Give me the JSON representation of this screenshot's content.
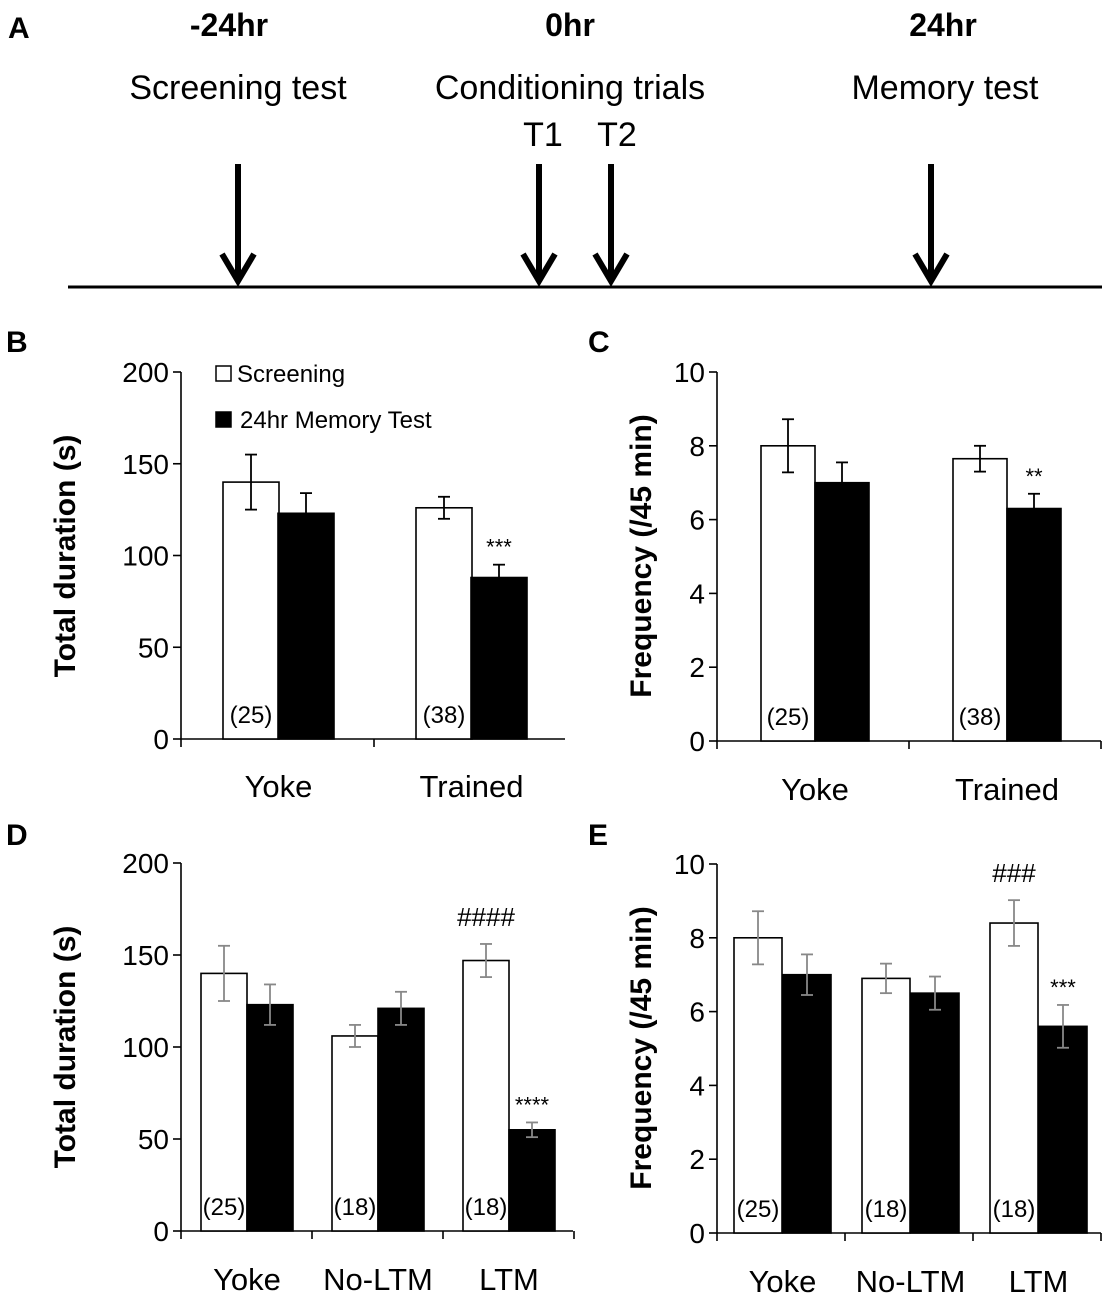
{
  "timeline": {
    "panel": "A",
    "events": [
      {
        "time": "-24hr",
        "label": "Screening test"
      },
      {
        "time": "0hr",
        "label": "Conditioning trials"
      },
      {
        "time": "24hr",
        "label": "Memory test"
      }
    ],
    "trials": [
      "T1",
      "T2"
    ]
  },
  "legend": {
    "screening": "Screening",
    "memory": "24hr Memory Test"
  },
  "colors": {
    "screening": "#ffffff",
    "memory": "#000000",
    "errorB": "#000000",
    "errorD": "#888888"
  },
  "chart_data": [
    {
      "panel": "B",
      "type": "bar",
      "ylabel": "Total duration (s)",
      "ylim": [
        0,
        200
      ],
      "yticks": [
        0,
        50,
        100,
        150,
        200
      ],
      "categories": [
        "Yoke",
        "Trained"
      ],
      "n": [
        "(25)",
        "(38)"
      ],
      "series": [
        {
          "name": "Screening",
          "values": [
            140,
            126
          ],
          "errors": [
            15,
            6
          ]
        },
        {
          "name": "24hr Memory Test",
          "values": [
            123,
            88
          ],
          "errors": [
            11,
            7
          ]
        }
      ],
      "annotations": [
        {
          "text": "***",
          "cat": 1,
          "series": 1
        }
      ]
    },
    {
      "panel": "C",
      "type": "bar",
      "ylabel": "Frequency (/45 min)",
      "ylim": [
        0,
        10
      ],
      "yticks": [
        0,
        2,
        4,
        6,
        8,
        10
      ],
      "categories": [
        "Yoke",
        "Trained"
      ],
      "n": [
        "(25)",
        "(38)"
      ],
      "series": [
        {
          "name": "Screening",
          "values": [
            8.0,
            7.65
          ],
          "errors": [
            0.72,
            0.35
          ]
        },
        {
          "name": "24hr Memory Test",
          "values": [
            7.0,
            6.3
          ],
          "errors": [
            0.55,
            0.4
          ]
        }
      ],
      "annotations": [
        {
          "text": "**",
          "cat": 1,
          "series": 1
        }
      ]
    },
    {
      "panel": "D",
      "type": "bar",
      "ylabel": "Total duration (s)",
      "ylim": [
        0,
        200
      ],
      "yticks": [
        0,
        50,
        100,
        150,
        200
      ],
      "categories": [
        "Yoke",
        "No-LTM",
        "LTM"
      ],
      "n": [
        "(25)",
        "(18)",
        "(18)"
      ],
      "series": [
        {
          "name": "Screening",
          "values": [
            140,
            106,
            147
          ],
          "errors": [
            15,
            6,
            9
          ]
        },
        {
          "name": "24hr Memory Test",
          "values": [
            123,
            121,
            55
          ],
          "errors": [
            11,
            9,
            4
          ]
        }
      ],
      "annotations": [
        {
          "text": "####",
          "cat": 2,
          "series": 0,
          "kind": "hash"
        },
        {
          "text": "****",
          "cat": 2,
          "series": 1
        }
      ]
    },
    {
      "panel": "E",
      "type": "bar",
      "ylabel": "Frequency (/45 min)",
      "ylim": [
        0,
        10
      ],
      "yticks": [
        0,
        2,
        4,
        6,
        8,
        10
      ],
      "categories": [
        "Yoke",
        "No-LTM",
        "LTM"
      ],
      "n": [
        "(25)",
        "(18)",
        "(18)"
      ],
      "series": [
        {
          "name": "Screening",
          "values": [
            8.0,
            6.9,
            8.4
          ],
          "errors": [
            0.72,
            0.4,
            0.62
          ]
        },
        {
          "name": "24hr Memory Test",
          "values": [
            7.0,
            6.5,
            5.6
          ],
          "errors": [
            0.55,
            0.45,
            0.58
          ]
        }
      ],
      "annotations": [
        {
          "text": "###",
          "cat": 2,
          "series": 0,
          "kind": "hash"
        },
        {
          "text": "***",
          "cat": 2,
          "series": 1
        }
      ]
    }
  ]
}
